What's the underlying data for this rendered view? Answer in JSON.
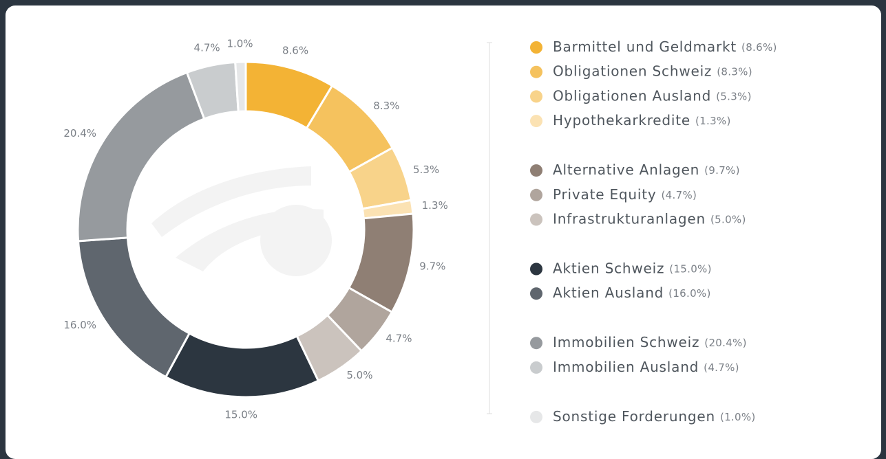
{
  "chart_data": {
    "type": "donut",
    "series": [
      {
        "name": "Barmittel und Geldmarkt",
        "color": "#f3b335",
        "values": [
          8.6
        ],
        "value_labels": [
          "8.6%"
        ],
        "legend_label": "(8.6%)"
      },
      {
        "name": "Obligationen Schweiz",
        "color": "#f5c25e",
        "values": [
          8.3
        ],
        "value_labels": [
          "8.3%"
        ],
        "legend_label": "(8.3%)"
      },
      {
        "name": "Obligationen Ausland",
        "color": "#f8d38a",
        "values": [
          5.3
        ],
        "value_labels": [
          "5.3%"
        ],
        "legend_label": "(5.3%)"
      },
      {
        "name": "Hypothekarkredite",
        "color": "#fbe2b3",
        "values": [
          1.3
        ],
        "value_labels": [
          "1.3%"
        ],
        "legend_label": "(1.3%)"
      },
      {
        "name": "Alternative Anlagen",
        "color": "#8f7f74",
        "values": [
          9.7
        ],
        "value_labels": [
          "9.7%"
        ],
        "legend_label": "(9.7%)"
      },
      {
        "name": "Private Equity",
        "color": "#b0a59d",
        "values": [
          4.7
        ],
        "value_labels": [
          "4.7%"
        ],
        "legend_label": "(4.7%)"
      },
      {
        "name": "Infrastrukturanlagen",
        "color": "#cbc3bd",
        "values": [
          5.0
        ],
        "value_labels": [
          "5.0%"
        ],
        "legend_label": "(5.0%)"
      },
      {
        "name": "Aktien Schweiz",
        "color": "#2c3640",
        "values": [
          15.0
        ],
        "value_labels": [
          "15.0%"
        ],
        "legend_label": "(15.0%)"
      },
      {
        "name": "Aktien Ausland",
        "color": "#5f666e",
        "values": [
          16.0
        ],
        "value_labels": [
          "16.0%"
        ],
        "legend_label": "(16.0%)"
      },
      {
        "name": "Immobilien Schweiz",
        "color": "#969a9e",
        "values": [
          20.4
        ],
        "value_labels": [
          "20.4%"
        ],
        "legend_label": "(20.4%)"
      },
      {
        "name": "Immobilien Ausland",
        "color": "#c9ccce",
        "values": [
          4.7
        ],
        "value_labels": [
          "4.7%"
        ],
        "legend_label": "(4.7%)"
      },
      {
        "name": "Sonstige Forderungen",
        "color": "#e6e7e8",
        "values": [
          1.0
        ],
        "value_labels": [
          "1.0%"
        ],
        "legend_label": "(1.0%)"
      }
    ]
  }
}
